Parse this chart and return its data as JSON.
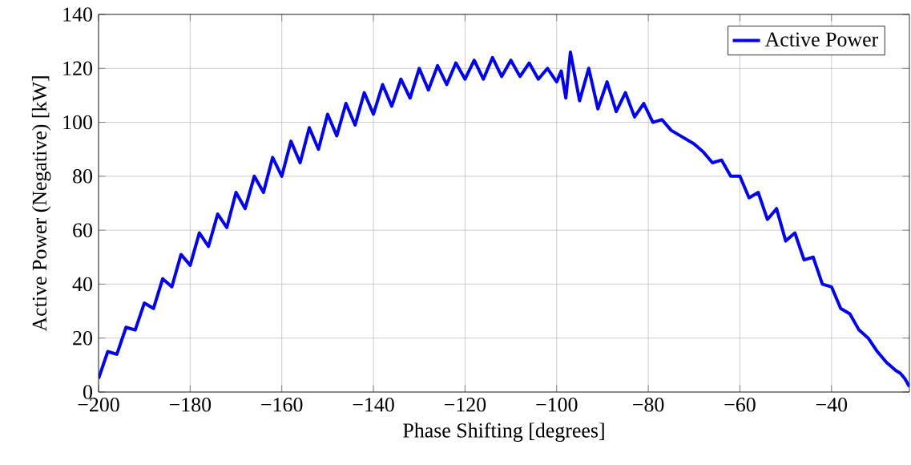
{
  "chart_data": {
    "type": "line",
    "xlabel": "Phase Shifting [degrees]",
    "ylabel": "Active Power (Negative) [kW]",
    "xlim": [
      -200,
      -23
    ],
    "ylim": [
      0,
      140
    ],
    "xticks": [
      {
        "value": -200,
        "label": "−200"
      },
      {
        "value": -180,
        "label": "−180"
      },
      {
        "value": -160,
        "label": "−160"
      },
      {
        "value": -140,
        "label": "−140"
      },
      {
        "value": -120,
        "label": "−120"
      },
      {
        "value": -100,
        "label": "−100"
      },
      {
        "value": -80,
        "label": "−80"
      },
      {
        "value": -60,
        "label": "−60"
      },
      {
        "value": -40,
        "label": "−40"
      }
    ],
    "yticks": [
      0,
      20,
      40,
      60,
      80,
      100,
      120,
      140
    ],
    "grid": true,
    "legend": "top right",
    "marker": "none",
    "line_style": "solid",
    "series": [
      {
        "name": "Active Power",
        "color": "#0000ff",
        "x": [
          -200,
          -198,
          -196,
          -194,
          -192,
          -190,
          -188,
          -186,
          -184,
          -182,
          -180,
          -178,
          -176,
          -174,
          -172,
          -170,
          -168,
          -166,
          -164,
          -162,
          -160,
          -158,
          -156,
          -154,
          -152,
          -150,
          -148,
          -146,
          -144,
          -142,
          -140,
          -138,
          -136,
          -134,
          -132,
          -130,
          -128,
          -126,
          -124,
          -122,
          -120,
          -118,
          -116,
          -114,
          -112,
          -110,
          -108,
          -106,
          -104,
          -102,
          -100,
          -99,
          -98,
          -97,
          -95,
          -93,
          -91,
          -89,
          -87,
          -85,
          -83,
          -81,
          -79,
          -77,
          -75,
          -73,
          -70,
          -68,
          -66,
          -64,
          -62,
          -60,
          -58,
          -56,
          -54,
          -52,
          -50,
          -48,
          -46,
          -44,
          -42,
          -40,
          -38,
          -36,
          -34,
          -32,
          -30,
          -28,
          -26,
          -25,
          -24,
          -23
        ],
        "values": [
          5,
          15,
          14,
          24,
          23,
          33,
          31,
          42,
          39,
          51,
          47,
          59,
          54,
          66,
          61,
          74,
          68,
          80,
          74,
          87,
          80,
          93,
          85,
          98,
          90,
          103,
          95,
          107,
          99,
          111,
          103,
          114,
          106,
          116,
          109,
          120,
          112,
          121,
          114,
          122,
          116,
          123,
          116,
          124,
          117,
          123,
          117,
          122,
          116,
          120,
          115,
          119,
          109,
          126,
          108,
          120,
          105,
          115,
          104,
          111,
          102,
          107,
          100,
          101,
          97,
          95,
          92,
          89,
          85,
          86,
          80,
          80,
          72,
          74,
          64,
          68,
          56,
          59,
          49,
          50,
          40,
          39,
          31,
          29,
          23,
          20,
          15,
          11,
          8,
          7,
          5,
          2
        ]
      }
    ]
  }
}
